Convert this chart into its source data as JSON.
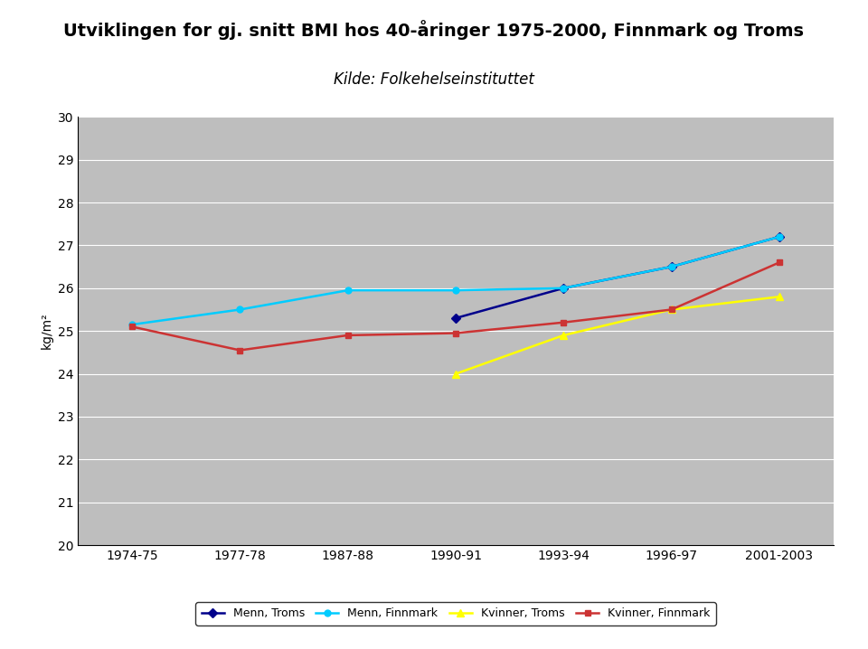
{
  "title": "Utviklingen for gj. snitt BMI hos 40-åringer 1975-2000, Finnmark og Troms",
  "subtitle": "Kilde: Folkehelseinstituttet",
  "ylabel": "kg/m²",
  "ylim": [
    20,
    30
  ],
  "yticks": [
    20,
    21,
    22,
    23,
    24,
    25,
    26,
    27,
    28,
    29,
    30
  ],
  "x_labels": [
    "1974-75",
    "1977-78",
    "1987-88",
    "1990-91",
    "1993-94",
    "1996-97",
    "2001-2003"
  ],
  "x_positions": [
    0,
    1,
    2,
    3,
    4,
    5,
    6
  ],
  "series": [
    {
      "name": "Menn, Troms",
      "x": [
        3,
        4,
        5,
        6
      ],
      "y": [
        25.3,
        26.0,
        26.5,
        27.2
      ],
      "color": "#00008B",
      "marker": "D",
      "markersize": 5,
      "linewidth": 1.8,
      "linestyle": "-"
    },
    {
      "name": "Menn, Finnmark",
      "x": [
        0,
        1,
        2,
        3,
        4,
        5,
        6
      ],
      "y": [
        25.15,
        25.5,
        25.95,
        25.95,
        26.0,
        26.5,
        27.2
      ],
      "color": "#00CCFF",
      "marker": "o",
      "markersize": 5,
      "linewidth": 1.8,
      "linestyle": "-"
    },
    {
      "name": "Kvinner, Troms",
      "x": [
        3,
        4,
        5,
        6
      ],
      "y": [
        24.0,
        24.9,
        25.5,
        25.8
      ],
      "color": "#FFFF00",
      "marker": "^",
      "markersize": 6,
      "linewidth": 1.8,
      "linestyle": "-"
    },
    {
      "name": "Kvinner, Finnmark",
      "x": [
        0,
        1,
        2,
        3,
        4,
        5,
        6
      ],
      "y": [
        25.1,
        24.55,
        24.9,
        24.95,
        25.2,
        25.5,
        26.6
      ],
      "color": "#CC3333",
      "marker": "s",
      "markersize": 4,
      "linewidth": 1.8,
      "linestyle": "-"
    }
  ],
  "plot_bg": "#BEBEBE",
  "fig_bg": "#FFFFFF",
  "grid_color": "#FFFFFF",
  "title_fontsize": 14,
  "subtitle_fontsize": 12,
  "tick_fontsize": 10,
  "ylabel_fontsize": 10,
  "legend_fontsize": 9
}
